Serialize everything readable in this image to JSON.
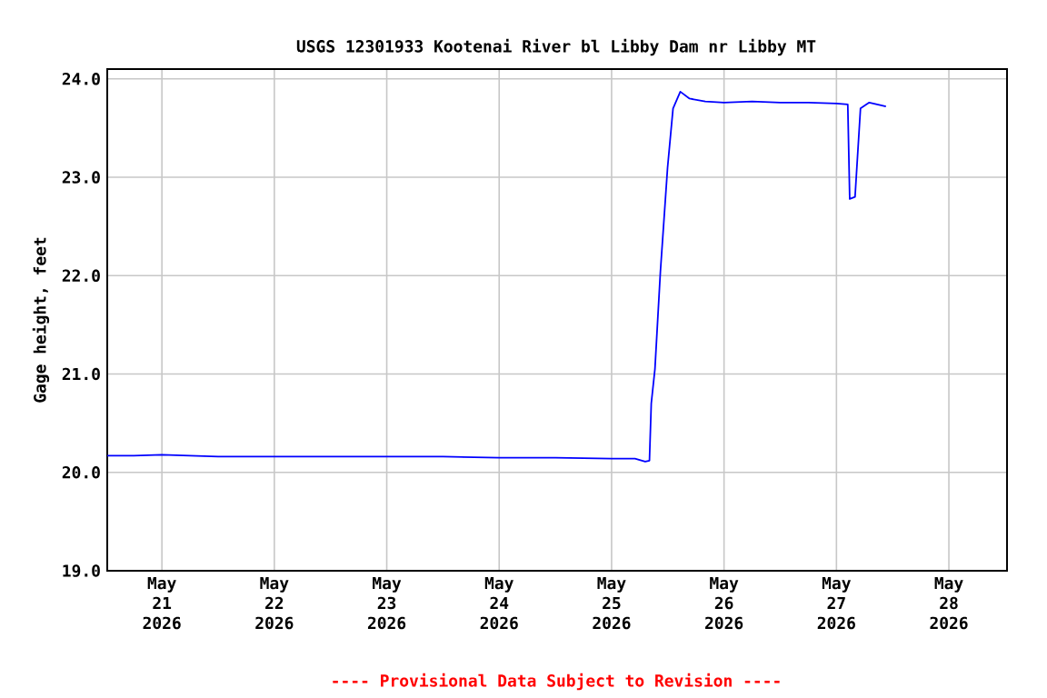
{
  "chart_data": {
    "type": "line",
    "title": "USGS 12301933 Kootenai River bl Libby Dam nr Libby MT",
    "ylabel": "Gage height, feet",
    "x": [
      "2026-05-20T12:20",
      "2026-05-20T18:00",
      "2026-05-21T00:00",
      "2026-05-21T12:00",
      "2026-05-22T00:00",
      "2026-05-22T12:00",
      "2026-05-23T00:00",
      "2026-05-23T12:00",
      "2026-05-24T00:00",
      "2026-05-24T12:00",
      "2026-05-25T00:00",
      "2026-05-25T05:00",
      "2026-05-25T07:10",
      "2026-05-25T08:05",
      "2026-05-25T08:28",
      "2026-05-25T09:15",
      "2026-05-25T10:25",
      "2026-05-25T11:57",
      "2026-05-25T13:07",
      "2026-05-25T14:40",
      "2026-05-25T16:38",
      "2026-05-25T20:00",
      "2026-05-26T00:00",
      "2026-05-26T06:00",
      "2026-05-26T12:00",
      "2026-05-26T18:00",
      "2026-05-27T00:00",
      "2026-05-27T02:25",
      "2026-05-27T02:50",
      "2026-05-27T03:58",
      "2026-05-27T05:08",
      "2026-05-27T07:00",
      "2026-05-27T10:34"
    ],
    "series": [
      {
        "color": "#0000ff",
        "values": [
          20.17,
          20.17,
          20.18,
          20.16,
          20.16,
          20.16,
          20.16,
          20.16,
          20.15,
          20.15,
          20.14,
          20.14,
          20.11,
          20.12,
          20.7,
          21.05,
          22.04,
          23.1,
          23.7,
          23.87,
          23.8,
          23.77,
          23.76,
          23.77,
          23.76,
          23.76,
          23.75,
          23.74,
          22.78,
          22.8,
          23.7,
          23.76,
          23.72
        ]
      }
    ],
    "xlim": [
      "2026-05-20T12:20",
      "2026-05-28T12:25"
    ],
    "xticks": [
      {
        "value": "2026-05-21",
        "label": "May 21 2026"
      },
      {
        "value": "2026-05-22",
        "label": "May 22 2026"
      },
      {
        "value": "2026-05-23",
        "label": "May 23 2026"
      },
      {
        "value": "2026-05-24",
        "label": "May 24 2026"
      },
      {
        "value": "2026-05-25",
        "label": "May 25 2026"
      },
      {
        "value": "2026-05-26",
        "label": "May 26 2026"
      },
      {
        "value": "2026-05-27",
        "label": "May 27 2026"
      },
      {
        "value": "2026-05-28",
        "label": "May 28 2026"
      }
    ],
    "ylim": [
      19.0,
      24.1
    ],
    "yticks": [
      {
        "value": 19,
        "label": "19.0"
      },
      {
        "value": 20,
        "label": "20.0"
      },
      {
        "value": 21,
        "label": "21.0"
      },
      {
        "value": 22,
        "label": "22.0"
      },
      {
        "value": 23,
        "label": "23.0"
      },
      {
        "value": 24,
        "label": "24.0"
      }
    ],
    "grid": true,
    "marker": "none",
    "line_style": "solid",
    "annotations": [
      "---- Provisional Data Subject to Revision ----"
    ]
  }
}
